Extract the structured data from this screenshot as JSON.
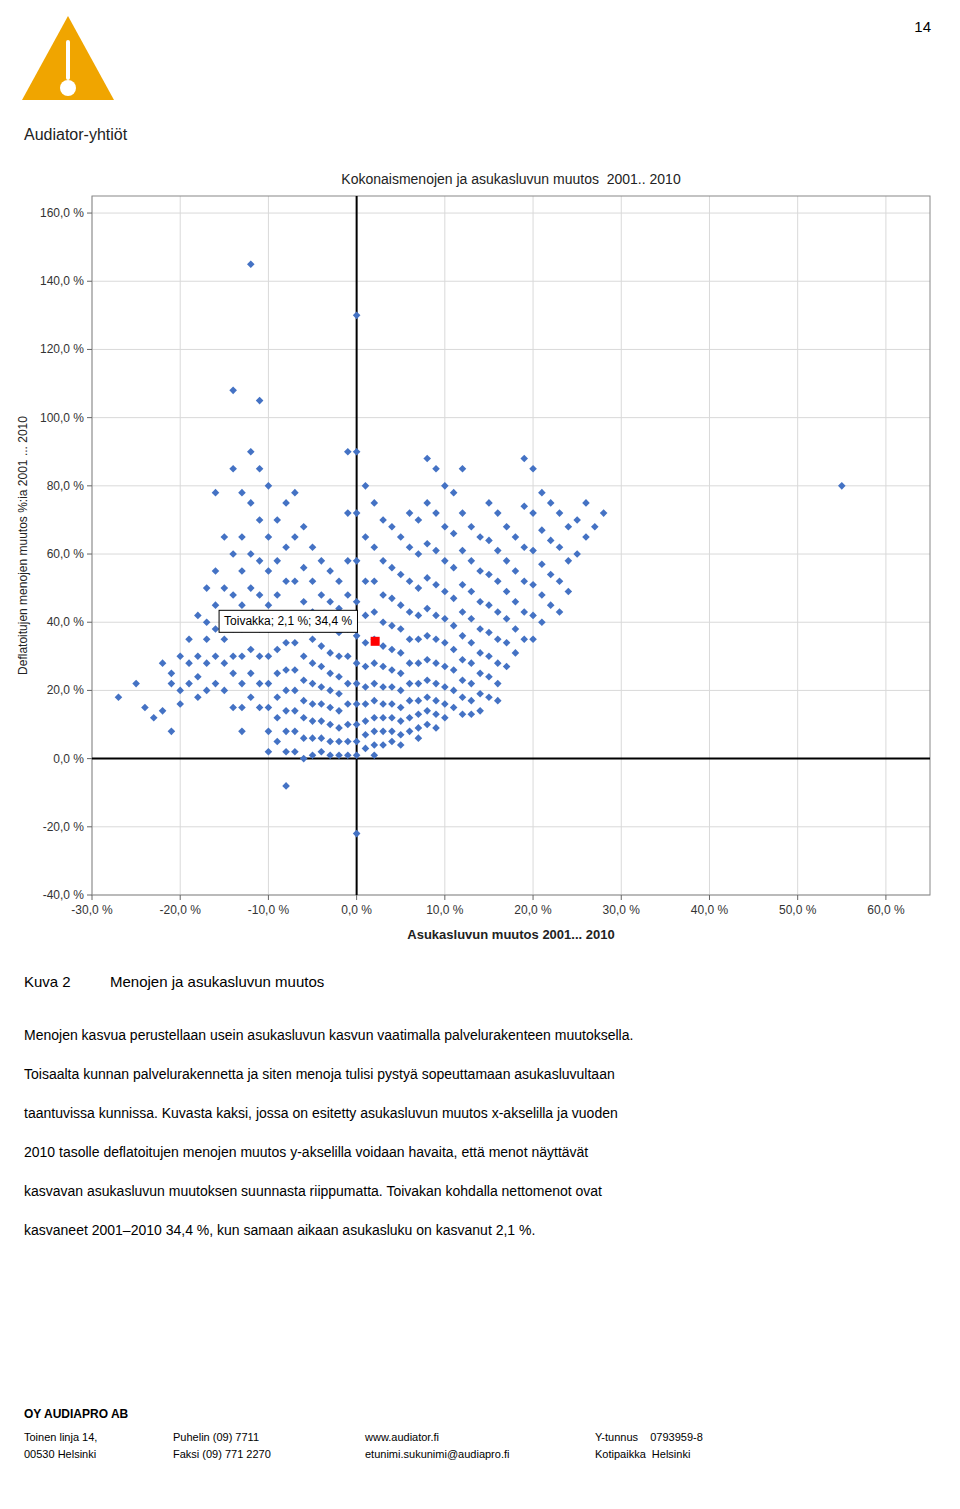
{
  "chart_data": {
    "type": "scatter",
    "title": "Kokonaismenojen ja asukasluvun muutos  2001.. 2010",
    "xlabel": "Asukasluvun muutos 2001... 2010",
    "ylabel": "Deflatoitujen menojen muutos %:ia 2001 ... 2010",
    "xlim": [
      -30,
      65
    ],
    "ylim": [
      -40,
      165
    ],
    "xticks": [
      {
        "value": -30,
        "label": "-30,0 %"
      },
      {
        "value": -20,
        "label": "-20,0 %"
      },
      {
        "value": -10,
        "label": "-10,0 %"
      },
      {
        "value": 0,
        "label": "0,0 %"
      },
      {
        "value": 10,
        "label": "10,0 %"
      },
      {
        "value": 20,
        "label": "20,0 %"
      },
      {
        "value": 30,
        "label": "30,0 %"
      },
      {
        "value": 40,
        "label": "40,0 %"
      },
      {
        "value": 50,
        "label": "50,0 %"
      },
      {
        "value": 60,
        "label": "60,0 %"
      }
    ],
    "yticks": [
      {
        "value": -40,
        "label": "-40,0 %"
      },
      {
        "value": -20,
        "label": "-20,0 %"
      },
      {
        "value": 0,
        "label": "0,0 %"
      },
      {
        "value": 20,
        "label": "20,0 %"
      },
      {
        "value": 40,
        "label": "40,0 %"
      },
      {
        "value": 60,
        "label": "60,0 %"
      },
      {
        "value": 80,
        "label": "80,0 %"
      },
      {
        "value": 100,
        "label": "100,0 %"
      },
      {
        "value": 120,
        "label": "120,0 %"
      },
      {
        "value": 140,
        "label": "140,0 %"
      },
      {
        "value": 160,
        "label": "160,0 %"
      }
    ],
    "grid": true,
    "series": [
      {
        "color": "#4472C4",
        "marker": "diamond",
        "x": [
          -27,
          -25,
          -24,
          -23,
          -22,
          -22,
          -21,
          -21,
          -21,
          -20,
          -20,
          -20,
          -19,
          -19,
          -19,
          -18,
          -18,
          -18,
          -18,
          -17,
          -17,
          -17,
          -17,
          -17,
          -16,
          -16,
          -16,
          -16,
          -16,
          -16,
          -15,
          -15,
          -15,
          -15,
          -15,
          -15,
          -14,
          -14,
          -14,
          -14,
          -14,
          -14,
          -14,
          -14,
          -13,
          -13,
          -13,
          -13,
          -13,
          -13,
          -13,
          -13,
          -13,
          -12,
          -12,
          -12,
          -12,
          -12,
          -12,
          -12,
          -12,
          -12,
          -11,
          -11,
          -11,
          -11,
          -11,
          -11,
          -11,
          -11,
          -11,
          -10,
          -10,
          -10,
          -10,
          -10,
          -10,
          -10,
          -10,
          -10,
          -10,
          -9,
          -9,
          -9,
          -9,
          -9,
          -9,
          -9,
          -9,
          -9,
          -8,
          -8,
          -8,
          -8,
          -8,
          -8,
          -8,
          -8,
          -8,
          -8,
          -8,
          -7,
          -7,
          -7,
          -7,
          -7,
          -7,
          -7,
          -7,
          -7,
          -7,
          -6,
          -6,
          -6,
          -6,
          -6,
          -6,
          -6,
          -6,
          -6,
          -6,
          -5,
          -5,
          -5,
          -5,
          -5,
          -5,
          -5,
          -5,
          -5,
          -5,
          -4,
          -4,
          -4,
          -4,
          -4,
          -4,
          -4,
          -4,
          -4,
          -4,
          -3,
          -3,
          -3,
          -3,
          -3,
          -3,
          -3,
          -3,
          -3,
          -3,
          -2,
          -2,
          -2,
          -2,
          -2,
          -2,
          -2,
          -2,
          -2,
          -2,
          -1,
          -1,
          -1,
          -1,
          -1,
          -1,
          -1,
          -1,
          -1,
          -1,
          -1,
          0,
          0,
          0,
          0,
          0,
          0,
          0,
          0,
          0,
          0,
          0,
          0,
          0,
          1,
          1,
          1,
          1,
          1,
          1,
          1,
          1,
          1,
          1,
          1,
          2,
          2,
          2,
          2,
          2,
          2,
          2,
          2,
          2,
          2,
          2,
          2,
          3,
          3,
          3,
          3,
          3,
          3,
          3,
          3,
          3,
          3,
          3,
          4,
          4,
          4,
          4,
          4,
          4,
          4,
          4,
          4,
          4,
          4,
          5,
          5,
          5,
          5,
          5,
          5,
          5,
          5,
          5,
          5,
          5,
          6,
          6,
          6,
          6,
          6,
          6,
          6,
          6,
          6,
          6,
          7,
          7,
          7,
          7,
          7,
          7,
          7,
          7,
          7,
          7,
          7,
          8,
          8,
          8,
          8,
          8,
          8,
          8,
          8,
          8,
          8,
          8,
          9,
          9,
          9,
          9,
          9,
          9,
          9,
          9,
          9,
          9,
          9,
          10,
          10,
          10,
          10,
          10,
          10,
          10,
          10,
          10,
          10,
          11,
          11,
          11,
          11,
          11,
          11,
          11,
          11,
          11,
          12,
          12,
          12,
          12,
          12,
          12,
          12,
          12,
          12,
          12,
          13,
          13,
          13,
          13,
          13,
          13,
          13,
          13,
          13,
          14,
          14,
          14,
          14,
          14,
          14,
          14,
          14,
          15,
          15,
          15,
          15,
          15,
          15,
          15,
          15,
          16,
          16,
          16,
          16,
          16,
          16,
          16,
          16,
          17,
          17,
          17,
          17,
          17,
          17,
          18,
          18,
          18,
          18,
          18,
          19,
          19,
          19,
          19,
          19,
          19,
          20,
          20,
          20,
          20,
          20,
          20,
          21,
          21,
          21,
          21,
          21,
          22,
          22,
          22,
          22,
          23,
          23,
          23,
          23,
          24,
          24,
          24,
          25,
          25,
          26,
          26,
          27,
          28,
          55
        ],
        "values": [
          18,
          22,
          15,
          12,
          28,
          14,
          25,
          8,
          22,
          30,
          20,
          16,
          35,
          28,
          22,
          42,
          30,
          24,
          18,
          50,
          40,
          35,
          28,
          20,
          78,
          55,
          45,
          38,
          30,
          22,
          65,
          50,
          42,
          35,
          28,
          20,
          108,
          85,
          60,
          48,
          38,
          30,
          25,
          15,
          78,
          65,
          55,
          45,
          38,
          30,
          22,
          15,
          8,
          145,
          90,
          75,
          60,
          50,
          40,
          32,
          25,
          18,
          105,
          85,
          70,
          58,
          48,
          38,
          30,
          22,
          15,
          80,
          65,
          55,
          45,
          38,
          30,
          22,
          15,
          8,
          2,
          70,
          58,
          48,
          40,
          32,
          25,
          18,
          12,
          5,
          75,
          62,
          52,
          42,
          34,
          26,
          20,
          14,
          8,
          2,
          -8,
          78,
          65,
          52,
          42,
          34,
          26,
          20,
          14,
          8,
          2,
          68,
          56,
          46,
          38,
          30,
          23,
          17,
          12,
          6,
          0,
          62,
          52,
          43,
          35,
          28,
          22,
          16,
          11,
          6,
          1,
          58,
          48,
          40,
          33,
          27,
          21,
          16,
          11,
          6,
          2,
          55,
          46,
          38,
          31,
          25,
          20,
          15,
          10,
          5,
          1,
          52,
          44,
          37,
          30,
          24,
          19,
          14,
          9,
          5,
          1,
          90,
          72,
          58,
          48,
          38,
          30,
          22,
          16,
          10,
          5,
          1,
          130,
          90,
          72,
          58,
          46,
          36,
          28,
          22,
          16,
          10,
          5,
          1,
          -22,
          80,
          65,
          52,
          42,
          34,
          27,
          21,
          16,
          11,
          7,
          3,
          75,
          62,
          52,
          43,
          35,
          28,
          22,
          17,
          12,
          8,
          4,
          1,
          70,
          58,
          48,
          40,
          33,
          27,
          21,
          16,
          12,
          8,
          4,
          68,
          56,
          47,
          39,
          32,
          26,
          21,
          16,
          12,
          8,
          5,
          65,
          54,
          45,
          38,
          31,
          25,
          20,
          15,
          11,
          7,
          4,
          72,
          62,
          52,
          43,
          35,
          28,
          22,
          17,
          12,
          8,
          70,
          60,
          50,
          42,
          35,
          28,
          22,
          17,
          13,
          9,
          6,
          88,
          75,
          63,
          53,
          44,
          36,
          29,
          23,
          18,
          14,
          10,
          85,
          72,
          61,
          51,
          42,
          35,
          28,
          22,
          17,
          13,
          9,
          80,
          68,
          58,
          49,
          41,
          34,
          27,
          21,
          16,
          12,
          78,
          66,
          56,
          47,
          39,
          32,
          26,
          20,
          15,
          85,
          72,
          61,
          51,
          43,
          36,
          29,
          23,
          18,
          13,
          68,
          58,
          49,
          41,
          34,
          28,
          22,
          17,
          13,
          65,
          55,
          46,
          38,
          31,
          25,
          19,
          14,
          75,
          64,
          54,
          45,
          37,
          30,
          24,
          18,
          72,
          61,
          52,
          43,
          35,
          28,
          22,
          17,
          68,
          58,
          49,
          41,
          34,
          27,
          65,
          55,
          46,
          38,
          31,
          88,
          74,
          62,
          52,
          43,
          35,
          85,
          72,
          61,
          51,
          42,
          35,
          78,
          67,
          57,
          48,
          40,
          75,
          64,
          54,
          45,
          72,
          62,
          52,
          43,
          68,
          58,
          49,
          70,
          60,
          75,
          65,
          68,
          72,
          80
        ]
      },
      {
        "color": "#FF0000",
        "marker": "square",
        "x": [
          2.1
        ],
        "values": [
          34.4
        ]
      }
    ],
    "annotations": [
      {
        "text": "Toivakka; 2,1 %; 34,4 %",
        "x": 2.1,
        "y": 34.4
      }
    ],
    "reference_lines": [
      {
        "axis": "x",
        "value": 0
      },
      {
        "axis": "y",
        "value": 0
      }
    ]
  },
  "page": {
    "page_number": "14",
    "company_name": "Audiator-yhtiöt",
    "logo_color": "#F0A500",
    "caption_label": "Kuva 2",
    "caption_text": "Menojen ja asukasluvun muutos",
    "body_lines": [
      "Menojen kasvua perustellaan usein asukasluvun kasvun vaatimalla palvelurakenteen muutoksella.",
      "Toisaalta kunnan palvelurakennetta ja siten menoja tulisi pystyä sopeuttamaan asukasluvultaan",
      "taantuvissa kunnissa. Kuvasta kaksi, jossa on esitetty asukasluvun muutos x-akselilla ja vuoden",
      "2010 tasolle deflatoitujen menojen muutos y-akselilla voidaan havaita, että menot näyttävät",
      "kasvavan asukasluvun muutoksen suunnasta riippumatta. Toivakan kohdalla nettomenot ovat",
      "kasvaneet 2001–2010 34,4 %, kun samaan aikaan asukasluku on kasvanut 2,1 %."
    ],
    "footer_title": "OY AUDIAPRO AB",
    "footer_columns": [
      [
        "Toinen linja 14,",
        "00530 Helsinki"
      ],
      [
        "Puhelin (09) 7711",
        "Faksi (09) 771 2270"
      ],
      [
        "www.audiator.fi",
        "etunimi.sukunimi@audiapro.fi"
      ],
      [
        "Y-tunnus    0793959-8",
        "Kotipaikka  Helsinki"
      ]
    ]
  }
}
